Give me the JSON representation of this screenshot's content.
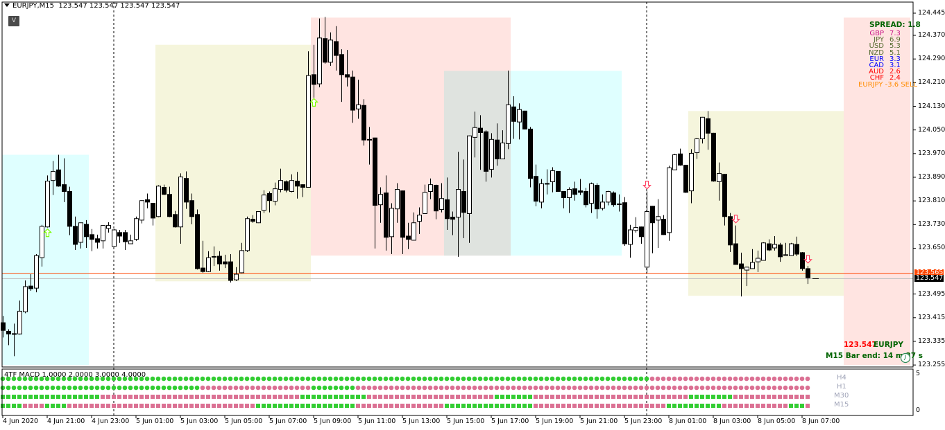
{
  "header": {
    "symbol": "EURJPY,M15",
    "ohlc": "123.547 123.547 123.547 123.547",
    "v_button": "V"
  },
  "colors": {
    "bull": "#ffffff",
    "bear": "#000000",
    "macd_up": "#32cd32",
    "macd_down": "#db7093",
    "bid_line": "#c0c0c0",
    "ask_line": "#ff4500"
  },
  "spread": {
    "label": "SPREAD: 1.8"
  },
  "strength": [
    {
      "cur": "GBP",
      "val": "7.3",
      "color": "#c71585"
    },
    {
      "cur": "JPY",
      "val": "6.9",
      "color": "#556b2f"
    },
    {
      "cur": "USD",
      "val": "5.3",
      "color": "#556b2f"
    },
    {
      "cur": "NZD",
      "val": "5.1",
      "color": "#556b2f"
    },
    {
      "cur": "EUR",
      "val": "3.3",
      "color": "#0000ff"
    },
    {
      "cur": "CAD",
      "val": "3.1",
      "color": "#0000ff"
    },
    {
      "cur": "AUD",
      "val": "2.6",
      "color": "#ff0000"
    },
    {
      "cur": "CHF",
      "val": "2.4",
      "color": "#ff0000"
    }
  ],
  "signal": {
    "text": "EURJPY -3.6 SELL",
    "color": "#ff8c00"
  },
  "current": {
    "price": "123.547",
    "symbol": "EURJPY",
    "bar_end": "M15 Bar end: 14 m 37 s",
    "ask": "123.565",
    "bid": "123.547",
    "ask_value": 123.565,
    "bid_value": 123.547,
    "clock_icon": "clock-icon"
  },
  "price_axis": [
    "124.445",
    "124.370",
    "124.290",
    "124.210",
    "124.130",
    "124.050",
    "123.970",
    "123.890",
    "123.810",
    "123.730",
    "123.650",
    "123.495",
    "123.415",
    "123.335",
    "123.255"
  ],
  "time_axis": [
    {
      "bar": 0,
      "label": "4 Jun 2020"
    },
    {
      "bar": 8,
      "label": "4 Jun 21:00"
    },
    {
      "bar": 16,
      "label": "4 Jun 23:00"
    },
    {
      "bar": 24,
      "label": "5 Jun 01:00"
    },
    {
      "bar": 32,
      "label": "5 Jun 03:00"
    },
    {
      "bar": 40,
      "label": "5 Jun 05:00"
    },
    {
      "bar": 48,
      "label": "5 Jun 07:00"
    },
    {
      "bar": 56,
      "label": "5 Jun 09:00"
    },
    {
      "bar": 64,
      "label": "5 Jun 11:00"
    },
    {
      "bar": 72,
      "label": "5 Jun 13:00"
    },
    {
      "bar": 80,
      "label": "5 Jun 15:00"
    },
    {
      "bar": 88,
      "label": "5 Jun 17:00"
    },
    {
      "bar": 96,
      "label": "5 Jun 19:00"
    },
    {
      "bar": 104,
      "label": "5 Jun 21:00"
    },
    {
      "bar": 112,
      "label": "5 Jun 23:00"
    },
    {
      "bar": 120,
      "label": "8 Jun 01:00"
    },
    {
      "bar": 128,
      "label": "8 Jun 03:00"
    },
    {
      "bar": 136,
      "label": "8 Jun 05:00"
    },
    {
      "bar": 144,
      "label": "8 Jun 07:00"
    }
  ],
  "day_separators": [
    20,
    116
  ],
  "zones": [
    {
      "from": 0,
      "to": 15,
      "high": 123.966,
      "low": 123.255,
      "color": "#dfffff"
    },
    {
      "from": 28,
      "to": 55,
      "high": 124.338,
      "low": 123.538,
      "color": "#f5f5dc"
    },
    {
      "from": 56,
      "to": 91,
      "high": 124.43,
      "low": 123.625,
      "color": "#ffe4e1"
    },
    {
      "from": 80,
      "to": 91,
      "high": 124.25,
      "low": 123.625,
      "color": "#dfe3df"
    },
    {
      "from": 92,
      "to": 111,
      "high": 124.25,
      "low": 123.625,
      "color": "#dfffff"
    },
    {
      "from": 124,
      "to": 151,
      "high": 124.114,
      "low": 123.489,
      "color": "#f5f5dc"
    },
    {
      "from": 152,
      "to": 163,
      "high": 124.43,
      "low": 123.255,
      "color": "#ffe4e1"
    }
  ],
  "arrows": [
    {
      "bar": 8,
      "price": 123.701,
      "dir": "up"
    },
    {
      "bar": 56,
      "price": 124.142,
      "dir": "up"
    },
    {
      "bar": 116,
      "price": 123.865,
      "dir": "down"
    },
    {
      "bar": 132,
      "price": 123.75,
      "dir": "down"
    },
    {
      "bar": 145,
      "price": 123.614,
      "dir": "down"
    }
  ],
  "chart_data": {
    "type": "candlestick",
    "symbol": "EURJPY",
    "timeframe": "M15",
    "ylim": [
      123.235,
      124.485
    ],
    "ohlc": [
      [
        123.398,
        123.421,
        123.348,
        123.372
      ],
      [
        123.369,
        123.376,
        123.322,
        123.36
      ],
      [
        123.36,
        123.395,
        123.285,
        123.361
      ],
      [
        123.36,
        123.473,
        123.358,
        123.437
      ],
      [
        123.435,
        123.541,
        123.43,
        123.52
      ],
      [
        123.522,
        123.562,
        123.506,
        123.513
      ],
      [
        123.515,
        123.63,
        123.501,
        123.625
      ],
      [
        123.618,
        123.729,
        123.588,
        123.724
      ],
      [
        123.722,
        123.896,
        123.72,
        123.877
      ],
      [
        123.879,
        123.945,
        123.83,
        123.91
      ],
      [
        123.915,
        123.966,
        123.858,
        123.86
      ],
      [
        123.865,
        123.954,
        123.806,
        123.842
      ],
      [
        123.842,
        123.858,
        123.694,
        123.724
      ],
      [
        123.724,
        123.757,
        123.644,
        123.663
      ],
      [
        123.67,
        123.737,
        123.649,
        123.736
      ],
      [
        123.731,
        123.745,
        123.651,
        123.689
      ],
      [
        123.696,
        123.715,
        123.64,
        123.68
      ],
      [
        123.682,
        123.696,
        123.649,
        123.67
      ],
      [
        123.675,
        123.728,
        123.649,
        123.727
      ],
      [
        123.717,
        123.738,
        123.703,
        123.727
      ],
      [
        123.656,
        123.715,
        123.654,
        123.712
      ],
      [
        123.703,
        123.712,
        123.668,
        123.691
      ],
      [
        123.703,
        123.712,
        123.644,
        123.672
      ],
      [
        123.665,
        123.696,
        123.664,
        123.675
      ],
      [
        123.68,
        123.757,
        123.675,
        123.75
      ],
      [
        123.745,
        123.812,
        123.734,
        123.811
      ],
      [
        123.814,
        123.835,
        123.785,
        123.806
      ],
      [
        123.802,
        123.803,
        123.727,
        123.752
      ],
      [
        123.757,
        123.863,
        123.755,
        123.86
      ],
      [
        123.856,
        123.865,
        123.83,
        123.832
      ],
      [
        123.832,
        123.858,
        123.755,
        123.757
      ],
      [
        123.764,
        123.776,
        123.72,
        123.722
      ],
      [
        123.722,
        123.903,
        123.665,
        123.891
      ],
      [
        123.886,
        123.91,
        123.783,
        123.806
      ],
      [
        123.811,
        123.835,
        123.731,
        123.757
      ],
      [
        123.764,
        123.781,
        123.578,
        123.581
      ],
      [
        123.583,
        123.675,
        123.567,
        123.571
      ],
      [
        123.571,
        123.64,
        123.569,
        123.618
      ],
      [
        123.621,
        123.656,
        123.59,
        123.622
      ],
      [
        123.623,
        123.64,
        123.574,
        123.597
      ],
      [
        123.604,
        123.628,
        123.583,
        123.597
      ],
      [
        123.604,
        123.63,
        123.534,
        123.541
      ],
      [
        123.543,
        123.586,
        123.539,
        123.562
      ],
      [
        123.567,
        123.668,
        123.565,
        123.642
      ],
      [
        123.642,
        123.757,
        123.637,
        123.75
      ],
      [
        123.748,
        123.762,
        123.736,
        123.741
      ],
      [
        123.736,
        123.775,
        123.735,
        123.774
      ],
      [
        123.778,
        123.846,
        123.769,
        123.83
      ],
      [
        123.835,
        123.842,
        123.771,
        123.811
      ],
      [
        123.809,
        123.872,
        123.795,
        123.851
      ],
      [
        123.849,
        123.919,
        123.839,
        123.879
      ],
      [
        123.875,
        123.879,
        123.839,
        123.846
      ],
      [
        123.842,
        123.9,
        123.839,
        123.879
      ],
      [
        123.877,
        123.908,
        123.818,
        123.86
      ],
      [
        123.865,
        123.866,
        123.823,
        123.856
      ],
      [
        123.856,
        124.316,
        123.855,
        124.234
      ],
      [
        124.237,
        124.338,
        124.159,
        124.204
      ],
      [
        124.206,
        124.427,
        124.194,
        124.361
      ],
      [
        124.359,
        124.432,
        124.274,
        124.279
      ],
      [
        124.279,
        124.38,
        124.267,
        124.354
      ],
      [
        124.349,
        124.401,
        124.251,
        124.302
      ],
      [
        124.305,
        124.323,
        124.145,
        124.237
      ],
      [
        124.237,
        124.321,
        124.197,
        124.229
      ],
      [
        124.229,
        124.251,
        124.074,
        124.117
      ],
      [
        124.121,
        124.22,
        124.088,
        124.135
      ],
      [
        124.133,
        124.154,
        123.997,
        124.016
      ],
      [
        124.018,
        124.06,
        123.933,
        124.017
      ],
      [
        124.023,
        124.024,
        123.649,
        123.795
      ],
      [
        123.797,
        123.856,
        123.736,
        123.832
      ],
      [
        123.837,
        123.896,
        123.642,
        123.687
      ],
      [
        123.689,
        123.802,
        123.63,
        123.785
      ],
      [
        123.783,
        123.87,
        123.736,
        123.849
      ],
      [
        123.844,
        123.845,
        123.63,
        123.687
      ],
      [
        123.691,
        123.736,
        123.647,
        123.68
      ],
      [
        123.677,
        123.771,
        123.676,
        123.736
      ],
      [
        123.741,
        123.788,
        123.698,
        123.762
      ],
      [
        123.767,
        123.865,
        123.766,
        123.839
      ],
      [
        123.842,
        123.886,
        123.816,
        123.865
      ],
      [
        123.863,
        123.865,
        123.748,
        123.776
      ],
      [
        123.781,
        123.87,
        123.771,
        123.818
      ],
      [
        123.814,
        123.889,
        123.712,
        123.75
      ],
      [
        123.755,
        123.774,
        123.694,
        123.748
      ],
      [
        123.755,
        123.976,
        123.621,
        123.849
      ],
      [
        123.842,
        123.95,
        123.684,
        123.771
      ],
      [
        123.767,
        124.031,
        123.668,
        124.03
      ],
      [
        124.025,
        124.112,
        123.957,
        124.058
      ],
      [
        124.056,
        124.1,
        123.915,
        124.041
      ],
      [
        124.044,
        124.049,
        123.875,
        123.91
      ],
      [
        123.917,
        124.039,
        123.889,
        124.018
      ],
      [
        124.016,
        124.072,
        123.929,
        123.952
      ],
      [
        123.952,
        124.049,
        123.951,
        124.006
      ],
      [
        124.004,
        124.251,
        123.985,
        124.135
      ],
      [
        124.128,
        124.164,
        124.02,
        124.079
      ],
      [
        124.077,
        124.14,
        124.018,
        124.119
      ],
      [
        124.114,
        124.115,
        124.052,
        124.053
      ],
      [
        124.053,
        124.06,
        123.856,
        123.886
      ],
      [
        123.893,
        123.933,
        123.792,
        123.809
      ],
      [
        123.806,
        123.884,
        123.785,
        123.868
      ],
      [
        123.868,
        123.917,
        123.832,
        123.869
      ],
      [
        123.875,
        123.924,
        123.839,
        123.912
      ],
      [
        123.91,
        123.911,
        123.841,
        123.842
      ],
      [
        123.842,
        123.843,
        123.785,
        123.821
      ],
      [
        123.821,
        123.856,
        123.769,
        123.849
      ],
      [
        123.851,
        123.875,
        123.811,
        123.832
      ],
      [
        123.844,
        123.884,
        123.83,
        123.839
      ],
      [
        123.842,
        123.854,
        123.788,
        123.797
      ],
      [
        123.802,
        123.872,
        123.769,
        123.868
      ],
      [
        123.863,
        123.87,
        123.75,
        123.783
      ],
      [
        123.785,
        123.832,
        123.778,
        123.806
      ],
      [
        123.806,
        123.844,
        123.795,
        123.842
      ],
      [
        123.837,
        123.842,
        123.79,
        123.797
      ],
      [
        123.799,
        123.832,
        123.774,
        123.8
      ],
      [
        123.804,
        123.823,
        123.658,
        123.665
      ],
      [
        123.663,
        123.729,
        123.618,
        123.712
      ],
      [
        123.71,
        123.755,
        123.703,
        123.72
      ],
      [
        123.722,
        123.723,
        123.665,
        123.689
      ],
      [
        123.586,
        123.842,
        123.567,
        123.774
      ],
      [
        123.792,
        123.793,
        123.633,
        123.736
      ],
      [
        123.745,
        123.816,
        123.651,
        123.757
      ],
      [
        123.748,
        123.762,
        123.695,
        123.696
      ],
      [
        123.703,
        123.929,
        123.675,
        123.922
      ],
      [
        123.915,
        123.969,
        123.914,
        123.966
      ],
      [
        123.969,
        123.987,
        123.929,
        123.931
      ],
      [
        123.931,
        123.932,
        123.837,
        123.839
      ],
      [
        123.844,
        123.985,
        123.802,
        123.971
      ],
      [
        123.973,
        124.023,
        123.952,
        124.02
      ],
      [
        124.02,
        124.094,
        124.004,
        124.093
      ],
      [
        124.088,
        124.114,
        123.983,
        124.039
      ],
      [
        124.039,
        124.04,
        123.875,
        123.877
      ],
      [
        123.875,
        123.94,
        123.811,
        123.903
      ],
      [
        123.9,
        123.901,
        123.727,
        123.757
      ],
      [
        123.757,
        123.769,
        123.637,
        123.661
      ],
      [
        123.665,
        123.727,
        123.594,
        123.595
      ],
      [
        123.597,
        123.635,
        123.487,
        123.581
      ],
      [
        123.576,
        123.587,
        123.522,
        123.586
      ],
      [
        123.581,
        123.647,
        123.58,
        123.602
      ],
      [
        123.604,
        123.642,
        123.569,
        123.616
      ],
      [
        123.609,
        123.67,
        123.608,
        123.668
      ],
      [
        123.665,
        123.68,
        123.64,
        123.644
      ],
      [
        123.651,
        123.691,
        123.642,
        123.663
      ],
      [
        123.661,
        123.668,
        123.604,
        123.621
      ],
      [
        123.628,
        123.668,
        123.626,
        123.628
      ],
      [
        123.625,
        123.668,
        123.624,
        123.665
      ],
      [
        123.663,
        123.689,
        123.623,
        123.63
      ],
      [
        123.635,
        123.637,
        123.574,
        123.581
      ],
      [
        123.581,
        123.59,
        123.529,
        123.55
      ],
      [
        123.547,
        123.547,
        123.547,
        123.547
      ]
    ]
  },
  "indicator": {
    "title": "4TF MACD 1.0000 2.0000 3.0000 4.0000",
    "scale": [
      "5",
      "0"
    ],
    "rows": [
      {
        "tf": "H4",
        "shape": "dot",
        "runs": [
          [
            117,
            "up"
          ],
          [
            29,
            "down"
          ]
        ]
      },
      {
        "tf": "H1",
        "shape": "dot",
        "runs": [
          [
            36,
            "up"
          ],
          [
            20,
            "down"
          ],
          [
            8,
            "up"
          ],
          [
            82,
            "down"
          ]
        ]
      },
      {
        "tf": "M30",
        "shape": "square",
        "runs": [
          [
            18,
            "up"
          ],
          [
            36,
            "down"
          ],
          [
            12,
            "up"
          ],
          [
            23,
            "down"
          ],
          [
            7,
            "up"
          ],
          [
            28,
            "down"
          ],
          [
            8,
            "up"
          ],
          [
            14,
            "down"
          ]
        ]
      },
      {
        "tf": "M15",
        "shape": "square",
        "runs": [
          [
            4,
            "up"
          ],
          [
            4,
            "down"
          ],
          [
            4,
            "up"
          ],
          [
            34,
            "down"
          ],
          [
            18,
            "up"
          ],
          [
            16,
            "down"
          ],
          [
            16,
            "up"
          ],
          [
            24,
            "down"
          ],
          [
            10,
            "up"
          ],
          [
            12,
            "down"
          ],
          [
            3,
            "up"
          ],
          [
            1,
            "down"
          ]
        ]
      }
    ]
  }
}
